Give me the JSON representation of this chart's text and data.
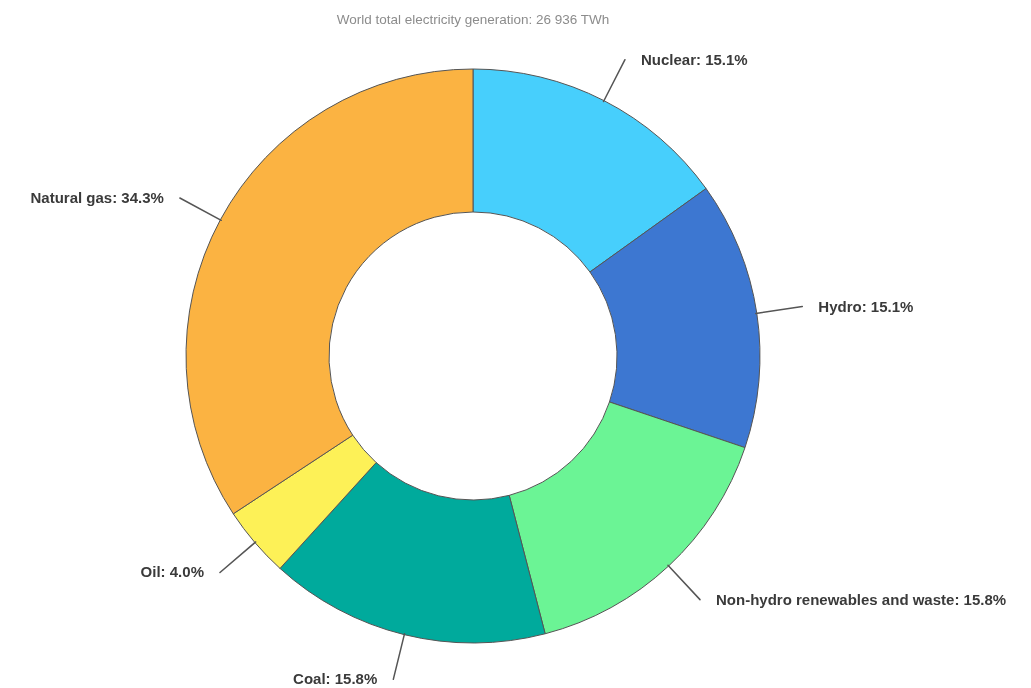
{
  "chart_data": {
    "type": "donut",
    "title": "World total electricity generation: 26 936 TWh",
    "categories": [
      "Nuclear",
      "Hydro",
      "Non-hydro renewables and waste",
      "Coal",
      "Oil",
      "Natural gas"
    ],
    "values": [
      15.1,
      15.1,
      15.8,
      15.8,
      4.0,
      34.3
    ],
    "colors": [
      "#47cffc",
      "#3d77d1",
      "#6bf495",
      "#00aa9c",
      "#fdf157",
      "#fbb342"
    ],
    "value_labels": [
      "15.1%",
      "15.1%",
      "15.8%",
      "15.8%",
      "4.0%",
      "34.3%"
    ]
  }
}
